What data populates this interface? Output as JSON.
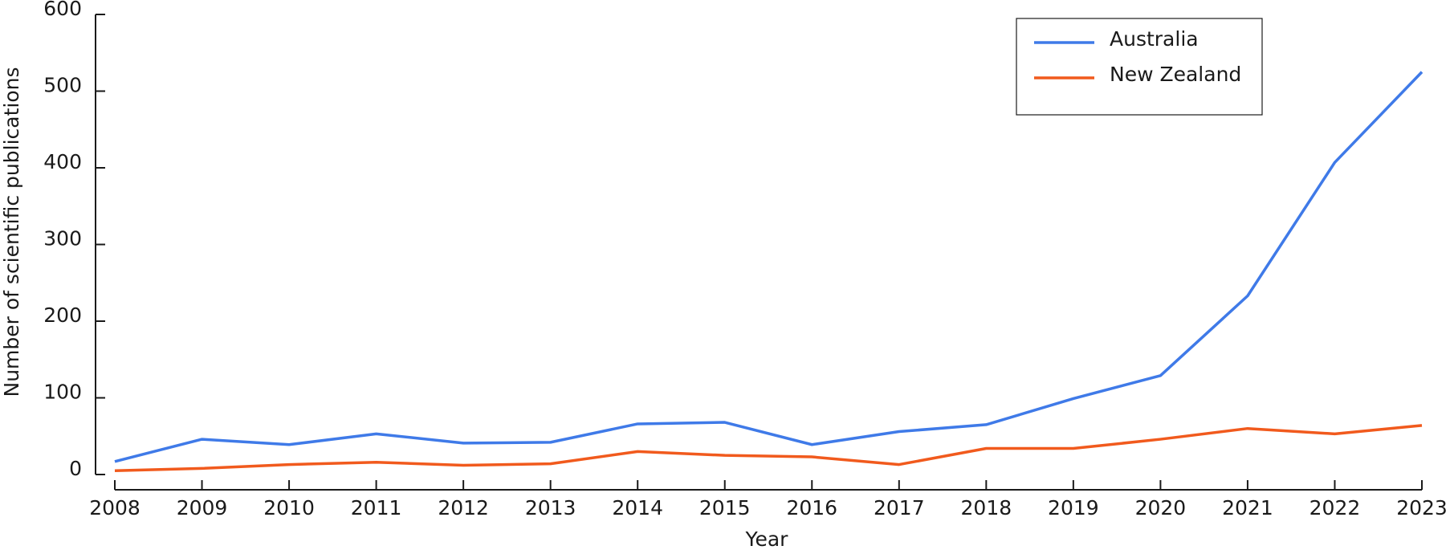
{
  "chart_data": {
    "type": "line",
    "x_label": "Year",
    "y_label": "Number of scientific publications",
    "x": [
      2008,
      2009,
      2010,
      2011,
      2012,
      2013,
      2014,
      2015,
      2016,
      2017,
      2018,
      2019,
      2020,
      2021,
      2022,
      2023
    ],
    "series": [
      {
        "name": "Australia",
        "color": "#3f7ae8",
        "values": [
          17,
          46,
          39,
          53,
          41,
          42,
          66,
          68,
          39,
          56,
          65,
          99,
          129,
          233,
          407,
          525
        ]
      },
      {
        "name": "New Zealand",
        "color": "#f15a1d",
        "values": [
          5,
          8,
          13,
          16,
          12,
          14,
          30,
          25,
          23,
          13,
          34,
          34,
          46,
          60,
          53,
          64
        ]
      }
    ],
    "xlim": [
      2008,
      2023
    ],
    "xticks": [
      2008,
      2009,
      2010,
      2011,
      2012,
      2013,
      2014,
      2015,
      2016,
      2017,
      2018,
      2019,
      2020,
      2021,
      2022,
      2023
    ],
    "ylim": [
      0,
      600
    ],
    "yticks": [
      0,
      100,
      200,
      300,
      400,
      500,
      600
    ],
    "grid": false,
    "legend": "upper-right"
  }
}
